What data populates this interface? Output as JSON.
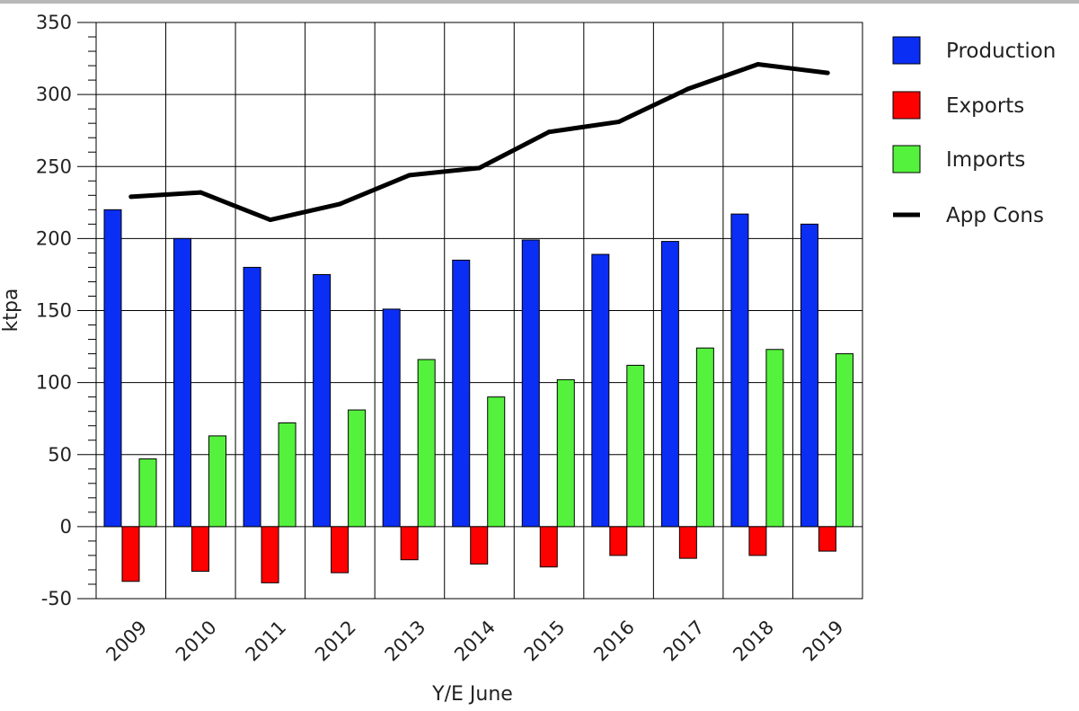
{
  "chart_data": {
    "type": "bar",
    "title": "",
    "xlabel": "Y/E June",
    "ylabel": "ktpa",
    "ylim": [
      -50,
      350
    ],
    "ytick_step": 50,
    "grid": true,
    "legend_position": "right",
    "categories": [
      "2009",
      "2010",
      "2011",
      "2012",
      "2013",
      "2014",
      "2015",
      "2016",
      "2017",
      "2018",
      "2019"
    ],
    "series": [
      {
        "name": "Production",
        "kind": "bar",
        "color": "#0b2ef5",
        "values": [
          220,
          200,
          180,
          175,
          151,
          185,
          199,
          189,
          198,
          217,
          210
        ]
      },
      {
        "name": "Exports",
        "kind": "bar",
        "color": "#ff0000",
        "values": [
          -38,
          -31,
          -39,
          -32,
          -23,
          -26,
          -28,
          -20,
          -22,
          -20,
          -17
        ]
      },
      {
        "name": "Imports",
        "kind": "bar",
        "color": "#55f23d",
        "values": [
          47,
          63,
          72,
          81,
          116,
          90,
          102,
          112,
          124,
          123,
          120
        ]
      },
      {
        "name": "App Cons",
        "kind": "line",
        "color": "#000000",
        "values": [
          229,
          232,
          213,
          224,
          244,
          249,
          274,
          281,
          304,
          321,
          315
        ]
      }
    ]
  }
}
